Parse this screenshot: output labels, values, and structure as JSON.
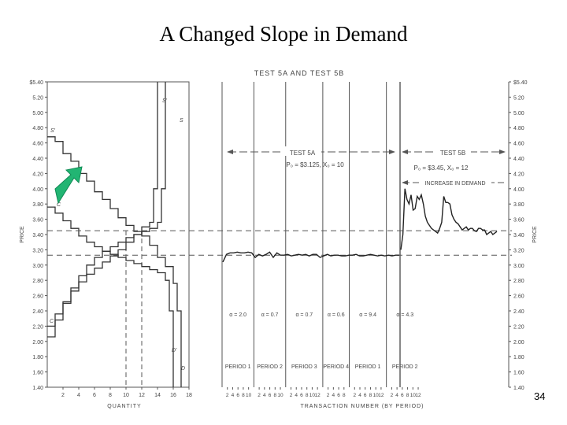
{
  "slide": {
    "title": "A Changed Slope in Demand",
    "page_number": "34"
  },
  "chart_data": [
    {
      "type": "line",
      "panel": "supply-demand",
      "title": "TEST 5A AND TEST 5B",
      "xlabel": "QUANTITY",
      "ylabel": "PRICE",
      "xticks": [
        "2",
        "4",
        "6",
        "8",
        "10",
        "12",
        "14",
        "16",
        "18"
      ],
      "xlim": [
        0,
        18
      ],
      "ylim": [
        1.4,
        5.4
      ],
      "yticks": [
        "$5.40",
        "5.20",
        "5.00",
        "4.80",
        "4.60",
        "4.40",
        "4.20",
        "4.00",
        "3.80",
        "3.60",
        "3.40",
        "3.20",
        "3.00",
        "2.80",
        "2.60",
        "2.40",
        "2.20",
        "2.00",
        "1.80",
        "1.60",
        "1.40"
      ],
      "curve_labels": [
        "S'",
        "S",
        "D'",
        "D",
        "C",
        "C"
      ],
      "reference_prices": [
        3.45,
        3.13
      ],
      "reference_quantities": [
        10,
        12
      ],
      "series": [
        {
          "x": [
            0,
            1,
            2,
            3,
            4,
            5,
            6,
            7,
            8,
            9,
            10,
            11,
            12,
            13,
            14,
            15,
            16,
            16.5,
            17
          ],
          "y": [
            4.68,
            4.62,
            4.46,
            4.36,
            4.2,
            4.1,
            3.96,
            3.86,
            3.74,
            3.62,
            3.52,
            3.44,
            3.38,
            3.26,
            3.1,
            2.98,
            2.76,
            2.4,
            1.4
          ]
        },
        {
          "x": [
            0,
            1,
            2,
            3,
            4,
            5,
            6,
            7,
            8,
            9,
            10,
            11,
            12,
            13,
            14,
            15,
            15.5,
            16
          ],
          "y": [
            3.76,
            3.68,
            3.58,
            3.48,
            3.38,
            3.3,
            3.24,
            3.18,
            3.14,
            3.1,
            3.06,
            3.02,
            2.98,
            2.94,
            2.9,
            2.8,
            2.4,
            1.4
          ]
        },
        {
          "x": [
            0,
            1,
            2,
            3,
            4,
            5,
            6,
            7,
            8,
            9,
            10,
            11,
            12,
            13,
            13.5,
            14
          ],
          "y": [
            2.2,
            2.36,
            2.52,
            2.66,
            2.78,
            2.88,
            2.96,
            3.04,
            3.12,
            3.2,
            3.3,
            3.4,
            3.5,
            3.56,
            4.0,
            5.4
          ]
        },
        {
          "x": [
            0,
            1,
            2,
            3,
            4,
            5,
            6,
            7,
            8,
            9,
            10,
            11,
            12,
            13,
            14,
            14.5,
            15
          ],
          "y": [
            2.06,
            2.28,
            2.5,
            2.7,
            2.86,
            3.0,
            3.1,
            3.18,
            3.24,
            3.3,
            3.36,
            3.4,
            3.44,
            3.48,
            3.56,
            4.0,
            5.4
          ]
        }
      ]
    },
    {
      "type": "line",
      "panel": "transaction-price",
      "xlabel": "TRANSACTION NUMBER (BY PERIOD)",
      "ylabel": "PRICE",
      "ylim": [
        1.4,
        5.4
      ],
      "yticks": [
        "$5.40",
        "5.20",
        "5.00",
        "4.80",
        "4.60",
        "4.40",
        "4.20",
        "4.00",
        "3.80",
        "3.60",
        "3.40",
        "3.20",
        "3.00",
        "2.80",
        "2.60",
        "2.40",
        "2.20",
        "2.00",
        "1.80",
        "1.60",
        "1.40"
      ],
      "reference_prices": [
        3.45,
        3.13
      ],
      "test_labels": [
        {
          "title": "TEST 5A",
          "params": "P₀ = $3.125, X₀ = 10"
        },
        {
          "title": "TEST 5B",
          "params": "P₀ = $3.45, X₀ = 12",
          "note": "INCREASE IN DEMAND"
        }
      ],
      "periods": [
        {
          "label": "PERIOD 1",
          "alpha": "α = 2.0",
          "ticks": [
            "2",
            "4",
            "6",
            "8",
            "10"
          ]
        },
        {
          "label": "PERIOD 2",
          "alpha": "α = 0.7",
          "ticks": [
            "2",
            "4",
            "6",
            "8",
            "10"
          ]
        },
        {
          "label": "PERIOD 3",
          "alpha": "α = 0.7",
          "ticks": [
            "2",
            "4",
            "6",
            "8",
            "10",
            "12"
          ]
        },
        {
          "label": "PERIOD 4",
          "alpha": "α = 0.6",
          "ticks": [
            "2",
            "4",
            "6",
            "8"
          ]
        },
        {
          "label": "PERIOD 1",
          "alpha": "α = 9.4",
          "ticks": [
            "2",
            "4",
            "6",
            "8",
            "10",
            "12"
          ]
        },
        {
          "label": "PERIOD 2",
          "alpha": "α = 4.3",
          "ticks": [
            "2",
            "4",
            "6",
            "8",
            "10",
            "12"
          ]
        }
      ],
      "series": [
        {
          "name": "TEST 5A",
          "x": [
            1,
            2,
            3,
            4,
            5,
            6,
            7,
            8,
            9,
            10,
            11,
            12,
            13,
            14,
            15,
            16,
            17,
            18,
            19,
            20,
            21,
            22,
            23,
            24,
            25,
            26,
            27,
            28,
            29,
            30,
            31,
            32,
            33,
            34,
            35,
            36,
            37,
            38,
            39,
            40,
            41,
            42,
            43,
            44,
            45,
            46,
            47,
            48,
            49,
            50
          ],
          "y": [
            3.04,
            3.14,
            3.16,
            3.16,
            3.17,
            3.16,
            3.16,
            3.17,
            3.16,
            3.1,
            3.14,
            3.12,
            3.14,
            3.17,
            3.1,
            3.16,
            3.13,
            3.13,
            3.14,
            3.12,
            3.13,
            3.14,
            3.13,
            3.14,
            3.12,
            3.14,
            3.14,
            3.1,
            3.12,
            3.14,
            3.12,
            3.13,
            3.13,
            3.12,
            3.12,
            3.13,
            3.13,
            3.14,
            3.12,
            3.12,
            3.13,
            3.14,
            3.13,
            3.12,
            3.13,
            3.12,
            3.13,
            3.12,
            3.13,
            3.13
          ]
        },
        {
          "name": "TEST 5B",
          "x": [
            51,
            52,
            53,
            54,
            55,
            56,
            57,
            58,
            59,
            60,
            61,
            62,
            63,
            64,
            65,
            66,
            67,
            68,
            69,
            70,
            71,
            72,
            73,
            74,
            75,
            76,
            77,
            78,
            79,
            80,
            81,
            82,
            83,
            84,
            85,
            86,
            87,
            88,
            89,
            90,
            91,
            92,
            93,
            94,
            95,
            96,
            97,
            98
          ],
          "y": [
            3.2,
            3.4,
            4.0,
            3.86,
            3.8,
            3.92,
            3.72,
            3.74,
            3.9,
            3.86,
            3.92,
            3.8,
            3.64,
            3.56,
            3.52,
            3.48,
            3.46,
            3.44,
            3.42,
            3.48,
            3.56,
            3.9,
            3.82,
            3.82,
            3.8,
            3.66,
            3.6,
            3.56,
            3.54,
            3.5,
            3.46,
            3.48,
            3.5,
            3.46,
            3.48,
            3.48,
            3.45,
            3.44,
            3.48,
            3.48,
            3.46,
            3.46,
            3.4,
            3.42,
            3.44,
            3.4,
            3.42,
            3.44
          ]
        }
      ]
    }
  ]
}
